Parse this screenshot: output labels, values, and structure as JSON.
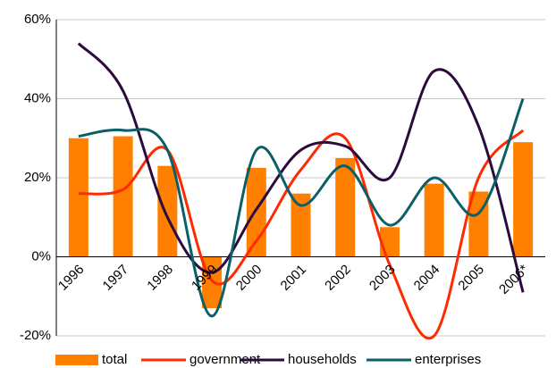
{
  "chart_data": {
    "type": "bar-line",
    "categories": [
      "1996",
      "1997",
      "1998",
      "1999",
      "2000",
      "2001",
      "2002",
      "2003",
      "2004",
      "2005",
      "2006*"
    ],
    "series": [
      {
        "name": "total",
        "type": "bar",
        "color": "#ff8000",
        "values": [
          30,
          30.5,
          23,
          -13,
          22.5,
          16,
          25,
          7.5,
          18.5,
          16.5,
          29
        ]
      },
      {
        "name": "government",
        "type": "line",
        "color": "#ff2a00",
        "values": [
          16,
          17,
          27,
          -6,
          4,
          22,
          30,
          -2,
          -20,
          20,
          32
        ]
      },
      {
        "name": "households",
        "type": "line",
        "color": "#2b0a3d",
        "values": [
          54,
          42,
          10,
          -4,
          12,
          27,
          28,
          20,
          47,
          33,
          -9
        ]
      },
      {
        "name": "enterprises",
        "type": "line",
        "color": "#0b5f69",
        "values": [
          30.5,
          32,
          27,
          -15,
          27,
          13,
          23,
          8,
          20,
          11,
          40
        ]
      }
    ],
    "ylim": [
      -20,
      60
    ],
    "yticks": [
      {
        "value": -20,
        "label": "-20%"
      },
      {
        "value": 0,
        "label": "0%"
      },
      {
        "value": 20,
        "label": "20%"
      },
      {
        "value": 40,
        "label": "40%"
      },
      {
        "value": 60,
        "label": "60%"
      }
    ],
    "grid": true
  }
}
